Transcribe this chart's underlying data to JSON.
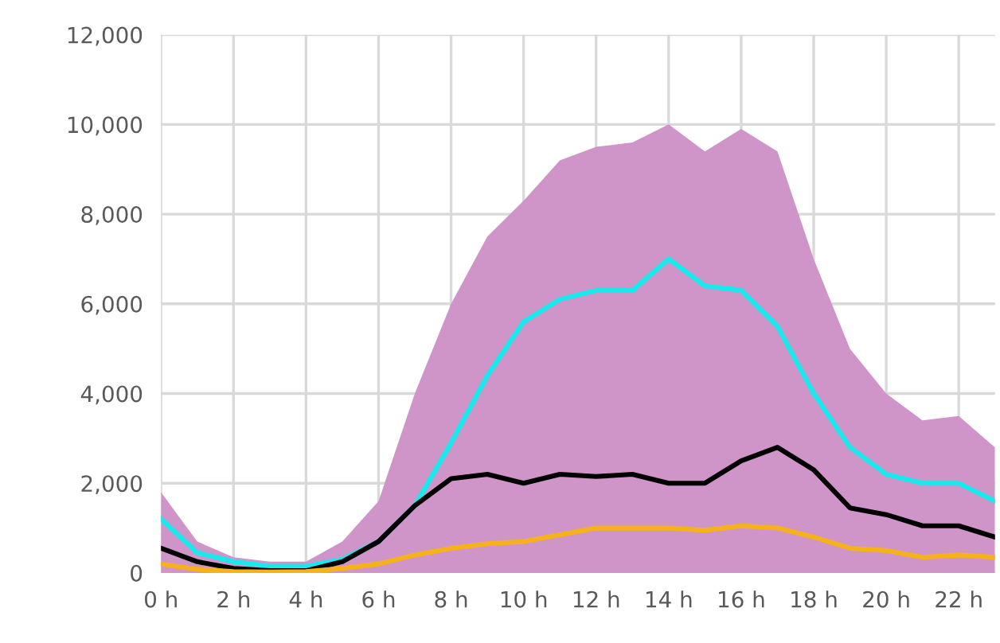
{
  "chart_data": {
    "type": "area",
    "x": [
      0,
      1,
      2,
      3,
      4,
      5,
      6,
      7,
      8,
      9,
      10,
      11,
      12,
      13,
      14,
      15,
      16,
      17,
      18,
      19,
      20,
      21,
      22,
      23
    ],
    "series": [
      {
        "color": "#cf95c8",
        "values": [
          1800,
          700,
          350,
          250,
          250,
          700,
          1600,
          4000,
          6000,
          7500,
          8300,
          9200,
          9500,
          9600,
          10000,
          9400,
          9900,
          9400,
          7000,
          5000,
          4000,
          3400,
          3500,
          2800
        ]
      },
      {
        "type": "line",
        "color": "#19e8ec",
        "values": [
          1200,
          450,
          250,
          150,
          150,
          300,
          700,
          1500,
          2900,
          4400,
          5600,
          6100,
          6300,
          6300,
          7000,
          6400,
          6300,
          5500,
          4000,
          2800,
          2200,
          2000,
          2000,
          1600
        ]
      },
      {
        "type": "line",
        "color": "#000000",
        "values": [
          550,
          250,
          100,
          50,
          50,
          250,
          700,
          1500,
          2100,
          2200,
          2000,
          2200,
          2150,
          2200,
          2000,
          2000,
          2500,
          2800,
          2300,
          1450,
          1300,
          1050,
          1050,
          800
        ]
      },
      {
        "type": "line",
        "color": "#f5b21a",
        "values": [
          200,
          80,
          30,
          20,
          30,
          100,
          200,
          400,
          550,
          650,
          700,
          850,
          1000,
          1000,
          1000,
          950,
          1050,
          1000,
          800,
          550,
          500,
          350,
          400,
          350
        ]
      }
    ],
    "xlim": [
      0,
      23
    ],
    "xticks": [
      {
        "value": 0,
        "label": "0 h"
      },
      {
        "value": 2,
        "label": "2 h"
      },
      {
        "value": 4,
        "label": "4 h"
      },
      {
        "value": 6,
        "label": "6 h"
      },
      {
        "value": 8,
        "label": "8 h"
      },
      {
        "value": 10,
        "label": "10 h"
      },
      {
        "value": 12,
        "label": "12 h"
      },
      {
        "value": 14,
        "label": "14 h"
      },
      {
        "value": 16,
        "label": "16 h"
      },
      {
        "value": 18,
        "label": "18 h"
      },
      {
        "value": 20,
        "label": "20 h"
      },
      {
        "value": 22,
        "label": "22 h"
      }
    ],
    "ylim": [
      0,
      12000
    ],
    "yticks": [
      0,
      {
        "value": 2000,
        "label": "2,000"
      },
      {
        "value": 4000,
        "label": "4,000"
      },
      {
        "value": 6000,
        "label": "6,000"
      },
      {
        "value": 8000,
        "label": "8,000"
      },
      {
        "value": 10000,
        "label": "10,000"
      },
      {
        "value": 12000,
        "label": "12,000"
      }
    ],
    "grid": true,
    "legend": false
  }
}
